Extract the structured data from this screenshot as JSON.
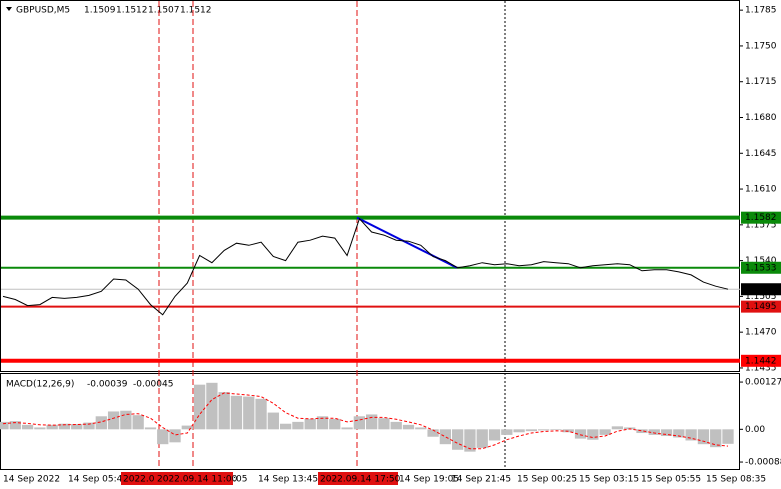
{
  "chart_data": [
    {
      "type": "line",
      "title": "GBPUSD,M5",
      "ohlc": [
        1.1509,
        1.1512,
        1.1507,
        1.1512
      ],
      "color": "#000000",
      "values": [
        1.1505,
        1.1502,
        1.1496,
        1.1497,
        1.1504,
        1.1503,
        1.1504,
        1.1506,
        1.151,
        1.1522,
        1.1521,
        1.1512,
        1.1497,
        1.1487,
        1.1505,
        1.1518,
        1.1545,
        1.1538,
        1.155,
        1.1557,
        1.1555,
        1.1558,
        1.1544,
        1.154,
        1.1558,
        1.156,
        1.1564,
        1.1562,
        1.1545,
        1.1581,
        1.1568,
        1.1565,
        1.156,
        1.1559,
        1.1555,
        1.1544,
        1.154,
        1.1533,
        1.1535,
        1.1538,
        1.1536,
        1.1537,
        1.1535,
        1.1536,
        1.1539,
        1.1538,
        1.1537,
        1.1533,
        1.1535,
        1.1536,
        1.1537,
        1.1536,
        1.153,
        1.1531,
        1.1531,
        1.1529,
        1.1526,
        1.1519,
        1.1515,
        1.1512
      ],
      "ylim": [
        1.1433,
        1.1792
      ],
      "yticks": [
        1.1785,
        {
          "value": 1.175,
          "label": "1.1750"
        },
        1.1715,
        {
          "value": 1.168,
          "label": "1.1680"
        },
        1.1645,
        {
          "value": 1.161,
          "label": "1.1610"
        },
        1.1575,
        {
          "value": 1.154,
          "label": "1.1540"
        },
        1.1505,
        {
          "value": 1.147,
          "label": "1.1470"
        },
        1.1435
      ],
      "levels": [
        {
          "value": 1.1582,
          "color": "#0a8a0a",
          "style": "thick"
        },
        {
          "value": 1.1533,
          "color": "#0a8a0a",
          "style": "thin"
        },
        {
          "value": 1.1495,
          "color": "#e01010",
          "style": "thin"
        },
        {
          "value": 1.1442,
          "color": "#ff0000",
          "style": "thick"
        }
      ],
      "current_price": 1.1512,
      "trendline": {
        "values": [
          1.1582,
          1.1533
        ],
        "color": "#0000dd"
      },
      "markers": [
        {
          "label": "2022.0",
          "color": "#e01010"
        },
        {
          "label": "2022.09.14 11:00",
          "color": "#e01010"
        },
        {
          "label": "2022.09.14 17:50",
          "color": "#e01010"
        }
      ],
      "xtick_labels": [
        "14 Sep 2022",
        "14 Sep 05:45",
        ":05",
        "14 Sep 13:45",
        "14 Sep 19:05",
        "14 Sep 21:45",
        "15 Sep 00:25",
        "15 Sep 03:15",
        "15 Sep 05:55",
        "15 Sep 08:35"
      ],
      "grid": false
    },
    {
      "type": "macd",
      "title": "MACD(12,26,9)",
      "readout": [
        -0.00039,
        -0.00045
      ],
      "series": [
        {
          "name": "MACD",
          "color": "#c0c0c0",
          "values": [
            0.0002,
            0.00022,
            0.00012,
            5e-05,
            0.00012,
            0.00015,
            0.00014,
            0.00018,
            0.00035,
            0.00048,
            0.0005,
            0.00038,
            5e-05,
            -0.0004,
            -0.00035,
            0.0001,
            0.0012,
            0.00125,
            0.001,
            0.0009,
            0.00088,
            0.00082,
            0.00045,
            0.00015,
            0.0002,
            0.00028,
            0.00035,
            0.00028,
            5e-05,
            0.00035,
            0.0004,
            0.0003,
            0.0002,
            0.00012,
            5e-05,
            -0.0002,
            -0.0004,
            -0.00055,
            -0.0006,
            -0.0005,
            -0.0003,
            -0.00015,
            -8e-05,
            -5e-05,
            -3e-05,
            -2e-05,
            -8e-05,
            -0.00025,
            -0.00028,
            -0.00015,
            8e-05,
            5e-05,
            -0.0001,
            -0.00015,
            -0.00018,
            -0.00022,
            -0.0003,
            -0.0004,
            -0.00048,
            -0.00039
          ]
        },
        {
          "name": "Signal",
          "color": "#ff0000",
          "values": [
            0.00015,
            0.00018,
            0.00016,
            0.00012,
            0.00011,
            0.00012,
            0.00013,
            0.00014,
            0.0002,
            0.0003,
            0.0004,
            0.00042,
            0.0003,
            5e-05,
            -0.00015,
            -0.0001,
            0.0004,
            0.0008,
            0.00098,
            0.00095,
            0.00092,
            0.00088,
            0.0007,
            0.00045,
            0.0003,
            0.00028,
            0.0003,
            0.0003,
            0.0002,
            0.00025,
            0.00032,
            0.00032,
            0.00027,
            0.0002,
            0.00012,
            -2e-05,
            -0.0002,
            -0.00038,
            -0.00052,
            -0.00052,
            -0.00042,
            -0.00028,
            -0.00018,
            -0.0001,
            -6e-05,
            -4e-05,
            -5e-05,
            -0.00015,
            -0.00022,
            -0.00018,
            -5e-05,
            1e-05,
            -4e-05,
            -0.0001,
            -0.00014,
            -0.00018,
            -0.00024,
            -0.00032,
            -0.00042,
            -0.00045
          ]
        }
      ],
      "ylim": [
        -0.00104,
        0.00146
      ],
      "yticks": [
        0.00127,
        {
          "value": 0,
          "label": "0.00"
        },
        -0.00088
      ]
    }
  ]
}
